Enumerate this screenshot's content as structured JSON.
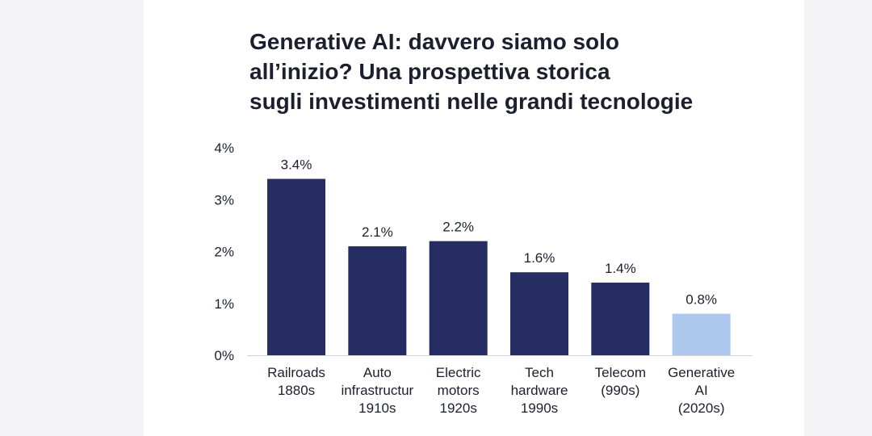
{
  "chart_data": {
    "type": "bar",
    "title": "Generative AI: davvero siamo solo\nall’inizio? Una prospettiva storica\nsugli investimenti nelle grandi tecnologie",
    "xlabel": "",
    "ylabel": "",
    "ylim": [
      0,
      4
    ],
    "yticks": [
      "0%",
      "1%",
      "2%",
      "3%",
      "4%"
    ],
    "grid": false,
    "categories": [
      "Railroads\n1880s",
      "Auto\ninfrastructur\n1910s",
      "Electric\nmotors\n1920s",
      "Tech\nhardware\n1990s",
      "Telecom\n(990s)",
      "Generative\nAI\n(2020s)"
    ],
    "values": [
      3.4,
      2.1,
      2.2,
      1.6,
      1.4,
      0.8
    ],
    "value_labels": [
      "3.4%",
      "2.1%",
      "2.2%",
      "1.6%",
      "1.4%",
      "0.8%"
    ],
    "colors": [
      "#252d62",
      "#252d62",
      "#252d62",
      "#252d62",
      "#252d62",
      "#afc8ee"
    ]
  }
}
